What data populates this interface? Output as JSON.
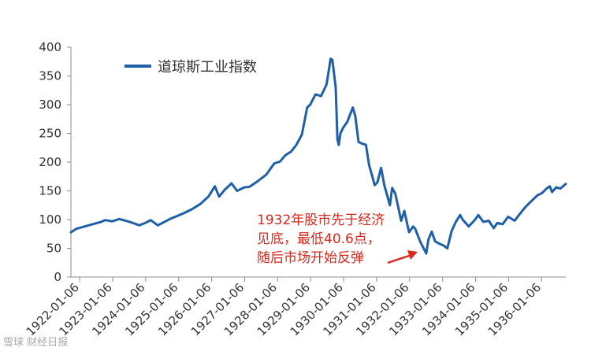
{
  "chart_data": {
    "type": "line",
    "title": "",
    "xlabel": "",
    "ylabel": "",
    "ylim": [
      0,
      400
    ],
    "yticks": [
      0,
      50,
      100,
      150,
      200,
      250,
      300,
      350,
      400
    ],
    "xlim": [
      "1921-10-01",
      "1936-09-30"
    ],
    "xticks": [
      "1922-01-06",
      "1923-01-06",
      "1924-01-06",
      "1925-01-06",
      "1926-01-06",
      "1927-01-06",
      "1928-01-06",
      "1929-01-06",
      "1930-01-06",
      "1931-01-06",
      "1932-01-06",
      "1933-01-06",
      "1934-01-06",
      "1935-01-06",
      "1936-01-06"
    ],
    "legend": {
      "label": "道琼斯工业指数",
      "placement": "top-left"
    },
    "series": [
      {
        "name": "道琼斯工业指数",
        "color": "#1f5fa8",
        "x": [
          "1921-10-01",
          "1921-12-01",
          "1922-03-01",
          "1922-06-01",
          "1922-09-01",
          "1922-10-15",
          "1923-01-01",
          "1923-03-20",
          "1923-06-01",
          "1923-08-01",
          "1923-10-27",
          "1924-01-01",
          "1924-03-01",
          "1924-05-20",
          "1924-08-01",
          "1924-10-01",
          "1925-01-01",
          "1925-03-01",
          "1925-06-01",
          "1925-09-01",
          "1925-12-01",
          "1926-02-11",
          "1926-03-30",
          "1926-06-01",
          "1926-08-14",
          "1926-10-15",
          "1927-01-01",
          "1927-03-01",
          "1927-06-01",
          "1927-09-01",
          "1927-12-01",
          "1928-02-01",
          "1928-04-01",
          "1928-06-01",
          "1928-08-01",
          "1928-10-01",
          "1928-11-28",
          "1929-01-01",
          "1929-03-01",
          "1929-05-01",
          "1929-07-01",
          "1929-08-15",
          "1929-09-03",
          "1929-10-10",
          "1929-10-29",
          "1929-11-13",
          "1929-12-01",
          "1930-01-01",
          "1930-02-15",
          "1930-04-17",
          "1930-05-15",
          "1930-06-20",
          "1930-08-01",
          "1930-09-10",
          "1930-10-15",
          "1930-12-16",
          "1931-01-15",
          "1931-02-24",
          "1931-04-01",
          "1931-06-02",
          "1931-06-27",
          "1931-08-01",
          "1931-10-05",
          "1931-11-09",
          "1931-12-31",
          "1932-02-15",
          "1932-03-08",
          "1932-05-01",
          "1932-07-08",
          "1932-08-01",
          "1932-09-07",
          "1932-10-15",
          "1932-12-01",
          "1933-01-15",
          "1933-02-27",
          "1933-04-15",
          "1933-06-01",
          "1933-07-18",
          "1933-08-15",
          "1933-10-21",
          "1934-01-01",
          "1934-02-05",
          "1934-04-01",
          "1934-06-01",
          "1934-07-26",
          "1934-09-01",
          "1934-11-01",
          "1935-01-01",
          "1935-03-14",
          "1935-05-01",
          "1935-07-01",
          "1935-09-01",
          "1935-11-20",
          "1936-01-10",
          "1936-03-01",
          "1936-04-06",
          "1936-05-01",
          "1936-06-15",
          "1936-08-01",
          "1936-09-30"
        ],
        "values": [
          78,
          84,
          88,
          92,
          96,
          99,
          97,
          101,
          98,
          95,
          90,
          94,
          99,
          90,
          96,
          101,
          107,
          111,
          118,
          127,
          140,
          158,
          140,
          152,
          163,
          150,
          156,
          157,
          167,
          178,
          198,
          201,
          212,
          218,
          230,
          248,
          295,
          300,
          318,
          315,
          335,
          380,
          378,
          330,
          240,
          230,
          250,
          260,
          270,
          295,
          280,
          235,
          232,
          230,
          195,
          160,
          165,
          190,
          160,
          125,
          155,
          145,
          98,
          115,
          78,
          88,
          84,
          62,
          41,
          65,
          79,
          62,
          58,
          55,
          50,
          80,
          96,
          108,
          100,
          88,
          100,
          108,
          96,
          98,
          85,
          94,
          92,
          105,
          98,
          108,
          120,
          130,
          142,
          146,
          154,
          158,
          148,
          156,
          154,
          162
        ]
      }
    ],
    "annotation": {
      "lines": [
        "1932年股市先于经济",
        "见底，最低40.6点，",
        "随后市场开始反弹"
      ],
      "color": "#d9281d"
    }
  },
  "watermark": "雪球 财经日报"
}
